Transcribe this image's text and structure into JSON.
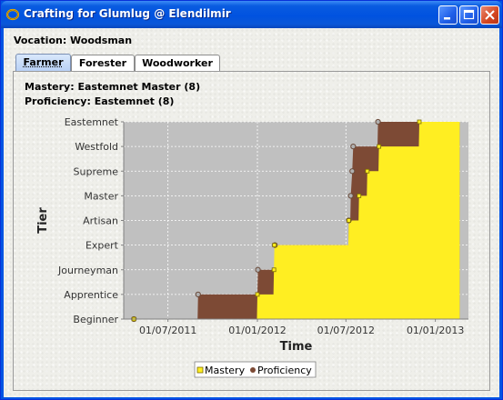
{
  "window": {
    "title": "Crafting for Glumlug @ Elendilmir",
    "accent": "#0054e3"
  },
  "vocation_label": "Vocation: Woodsman",
  "tabs": [
    {
      "label": "Farmer",
      "active": true
    },
    {
      "label": "Forester",
      "active": false
    },
    {
      "label": "Woodworker",
      "active": false
    }
  ],
  "mastery_text": "Mastery: Eastemnet Master (8)",
  "proficiency_text": "Proficiency: Eastemnet (8)",
  "chart_data": {
    "type": "area",
    "xlabel": "Time",
    "ylabel": "Tier",
    "y_categories": [
      "Beginner",
      "Apprentice",
      "Journeyman",
      "Expert",
      "Artisan",
      "Master",
      "Supreme",
      "Westfold",
      "Eastemnet"
    ],
    "x_ticks": [
      "01/07/2011",
      "01/01/2012",
      "01/07/2012",
      "01/01/2013"
    ],
    "xlim": [
      "2011-04-01",
      "2013-03-10"
    ],
    "ylim": [
      0,
      8
    ],
    "grid": true,
    "legend": {
      "placement": "bottom",
      "entries": [
        "Mastery",
        "Proficiency"
      ]
    },
    "series": [
      {
        "name": "Mastery",
        "color": "#ffee22",
        "points": [
          [
            "2011-04-22",
            0
          ],
          [
            "2011-12-31",
            0
          ],
          [
            "2012-01-01",
            1
          ],
          [
            "2012-02-03",
            1
          ],
          [
            "2012-02-04",
            2
          ],
          [
            "2012-02-05",
            3
          ],
          [
            "2012-07-06",
            3
          ],
          [
            "2012-07-07",
            4
          ],
          [
            "2012-07-27",
            4
          ],
          [
            "2012-07-28",
            5
          ],
          [
            "2012-08-13",
            5
          ],
          [
            "2012-08-14",
            6
          ],
          [
            "2012-09-06",
            6
          ],
          [
            "2012-09-07",
            7
          ],
          [
            "2012-11-28",
            7
          ],
          [
            "2012-11-29",
            8
          ],
          [
            "2013-02-20",
            8
          ]
        ]
      },
      {
        "name": "Proficiency",
        "color": "#7d4a35",
        "points": [
          [
            "2011-04-22",
            0
          ],
          [
            "2011-08-31",
            0
          ],
          [
            "2011-09-01",
            1
          ],
          [
            "2012-01-01",
            1
          ],
          [
            "2012-01-02",
            2
          ],
          [
            "2012-02-05",
            2
          ],
          [
            "2012-02-06",
            3
          ],
          [
            "2012-07-06",
            3
          ],
          [
            "2012-07-07",
            4
          ],
          [
            "2012-07-10",
            4
          ],
          [
            "2012-07-11",
            5
          ],
          [
            "2012-07-14",
            6
          ],
          [
            "2012-07-16",
            7
          ],
          [
            "2012-09-04",
            7
          ],
          [
            "2012-09-05",
            8
          ],
          [
            "2013-02-20",
            8
          ]
        ]
      }
    ]
  }
}
